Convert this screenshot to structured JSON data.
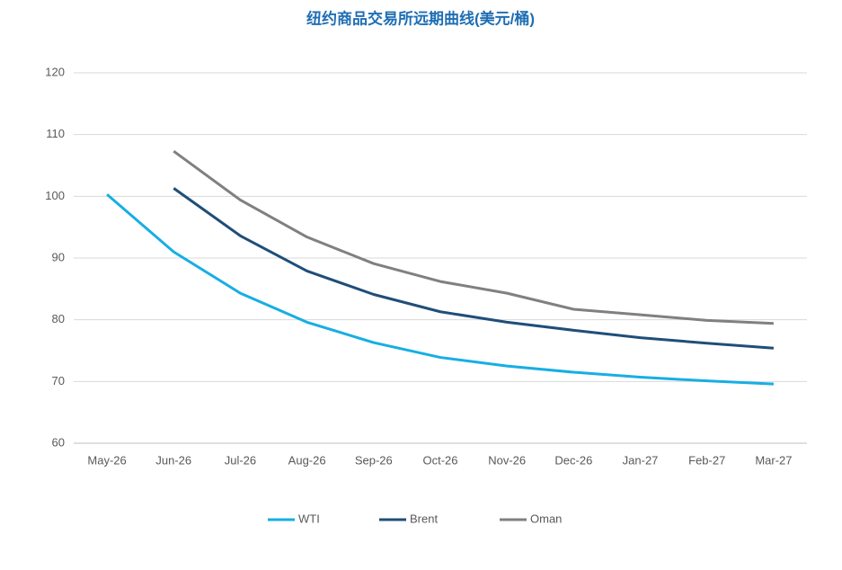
{
  "chart_data": {
    "type": "line",
    "title": "纽约商品交易所远期曲线(美元/桶)",
    "categories": [
      "May-26",
      "Jun-26",
      "Jul-26",
      "Aug-26",
      "Sep-26",
      "Oct-26",
      "Nov-26",
      "Dec-26",
      "Jan-27",
      "Feb-27",
      "Mar-27"
    ],
    "series": [
      {
        "name": "WTI",
        "color": "#17aee4",
        "values": [
          100.3,
          91.0,
          84.3,
          79.6,
          76.3,
          73.9,
          72.5,
          71.5,
          70.7,
          70.1,
          69.6
        ]
      },
      {
        "name": "Brent",
        "color": "#1f4e79",
        "values": [
          null,
          101.3,
          93.6,
          87.9,
          84.1,
          81.3,
          79.6,
          78.3,
          77.1,
          76.2,
          75.4
        ]
      },
      {
        "name": "Oman",
        "color": "#808080",
        "values": [
          null,
          107.3,
          99.4,
          93.4,
          89.1,
          86.2,
          84.3,
          81.7,
          80.8,
          79.9,
          79.4
        ]
      }
    ],
    "ylim": [
      60,
      120
    ],
    "yticks": [
      60,
      70,
      80,
      90,
      100,
      110,
      120
    ],
    "grid": true,
    "legend": "bottom"
  }
}
